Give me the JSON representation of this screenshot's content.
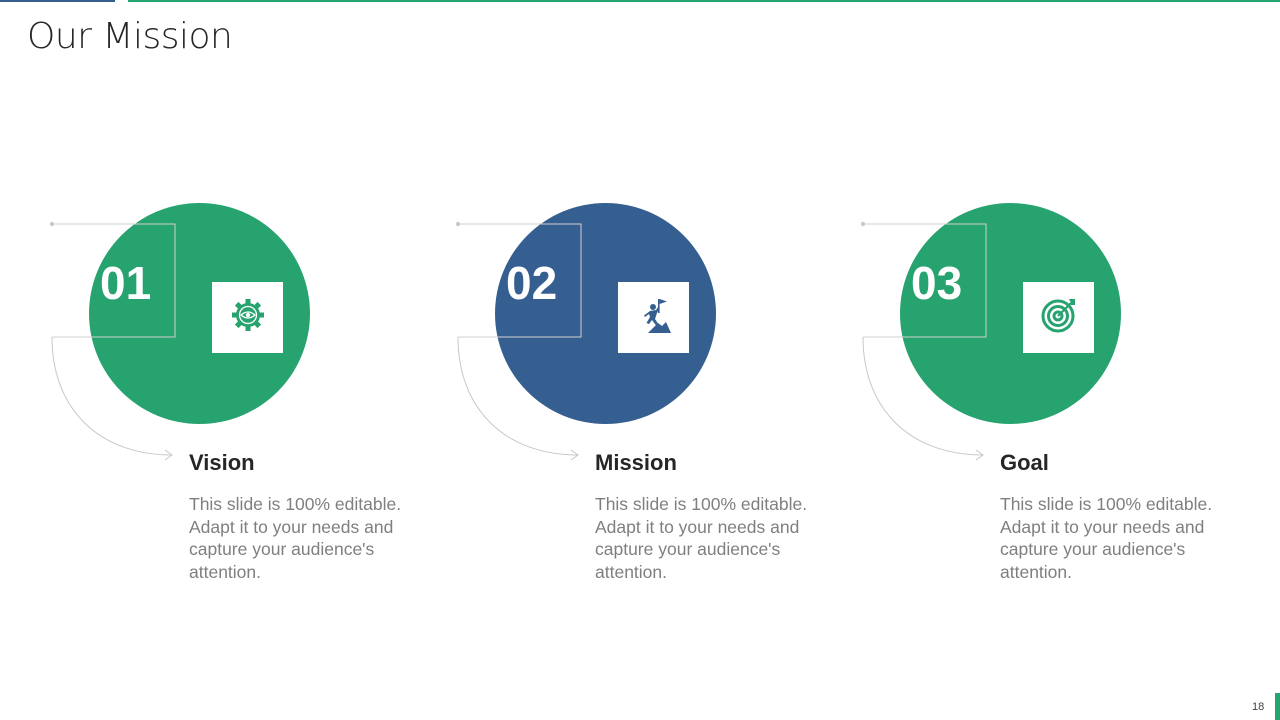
{
  "title": "Our Mission",
  "colors": {
    "green": "#27a36f",
    "blue": "#365f91"
  },
  "cards": [
    {
      "number": "01",
      "heading": "Vision",
      "body": "This slide is 100% editable. Adapt it to your needs and capture your audience's attention.",
      "color": "#27a36f",
      "icon": "gear-eye-icon"
    },
    {
      "number": "02",
      "heading": "Mission",
      "body": "This slide is 100% editable. Adapt it to your needs and capture your audience's attention.",
      "color": "#365f91",
      "icon": "climber-flag-icon"
    },
    {
      "number": "03",
      "heading": "Goal",
      "body": "This slide is 100% editable. Adapt it to your needs and capture your audience's attention.",
      "color": "#27a36f",
      "icon": "target-arrow-icon"
    }
  ],
  "page_number": "18"
}
